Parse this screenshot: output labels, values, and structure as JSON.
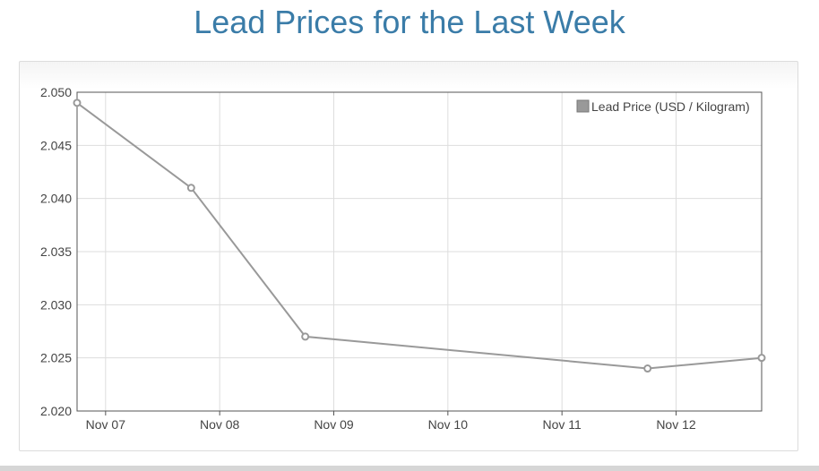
{
  "page": {
    "title": "Lead Prices for the Last Week"
  },
  "chart_data": {
    "type": "line",
    "title": "Lead Prices for the Last Week",
    "xlabel": "",
    "ylabel": "",
    "x_tick_labels": [
      "Nov 07",
      "Nov 08",
      "Nov 09",
      "Nov 10",
      "Nov 11",
      "Nov 12"
    ],
    "y_tick_labels": [
      "2.050",
      "2.045",
      "2.040",
      "2.035",
      "2.030",
      "2.025",
      "2.020"
    ],
    "ylim": [
      2.02,
      2.05
    ],
    "xlim": [
      "2023-11-06 18:00",
      "2023-11-12 18:00"
    ],
    "grid": true,
    "legend_position": "top-right",
    "series": [
      {
        "name": "Lead Price (USD / Kilogram)",
        "color": "#999999",
        "points": [
          {
            "x": "2023-11-06 18:00",
            "y": 2.049
          },
          {
            "x": "2023-11-07 18:00",
            "y": 2.041
          },
          {
            "x": "2023-11-08 18:00",
            "y": 2.027
          },
          {
            "x": "2023-11-11 18:00",
            "y": 2.024
          },
          {
            "x": "2023-11-12 18:00",
            "y": 2.025
          }
        ]
      }
    ]
  },
  "colors": {
    "title": "#3a7ca8",
    "grid": "#dddddd",
    "axis": "#555555",
    "series": "#999999"
  }
}
